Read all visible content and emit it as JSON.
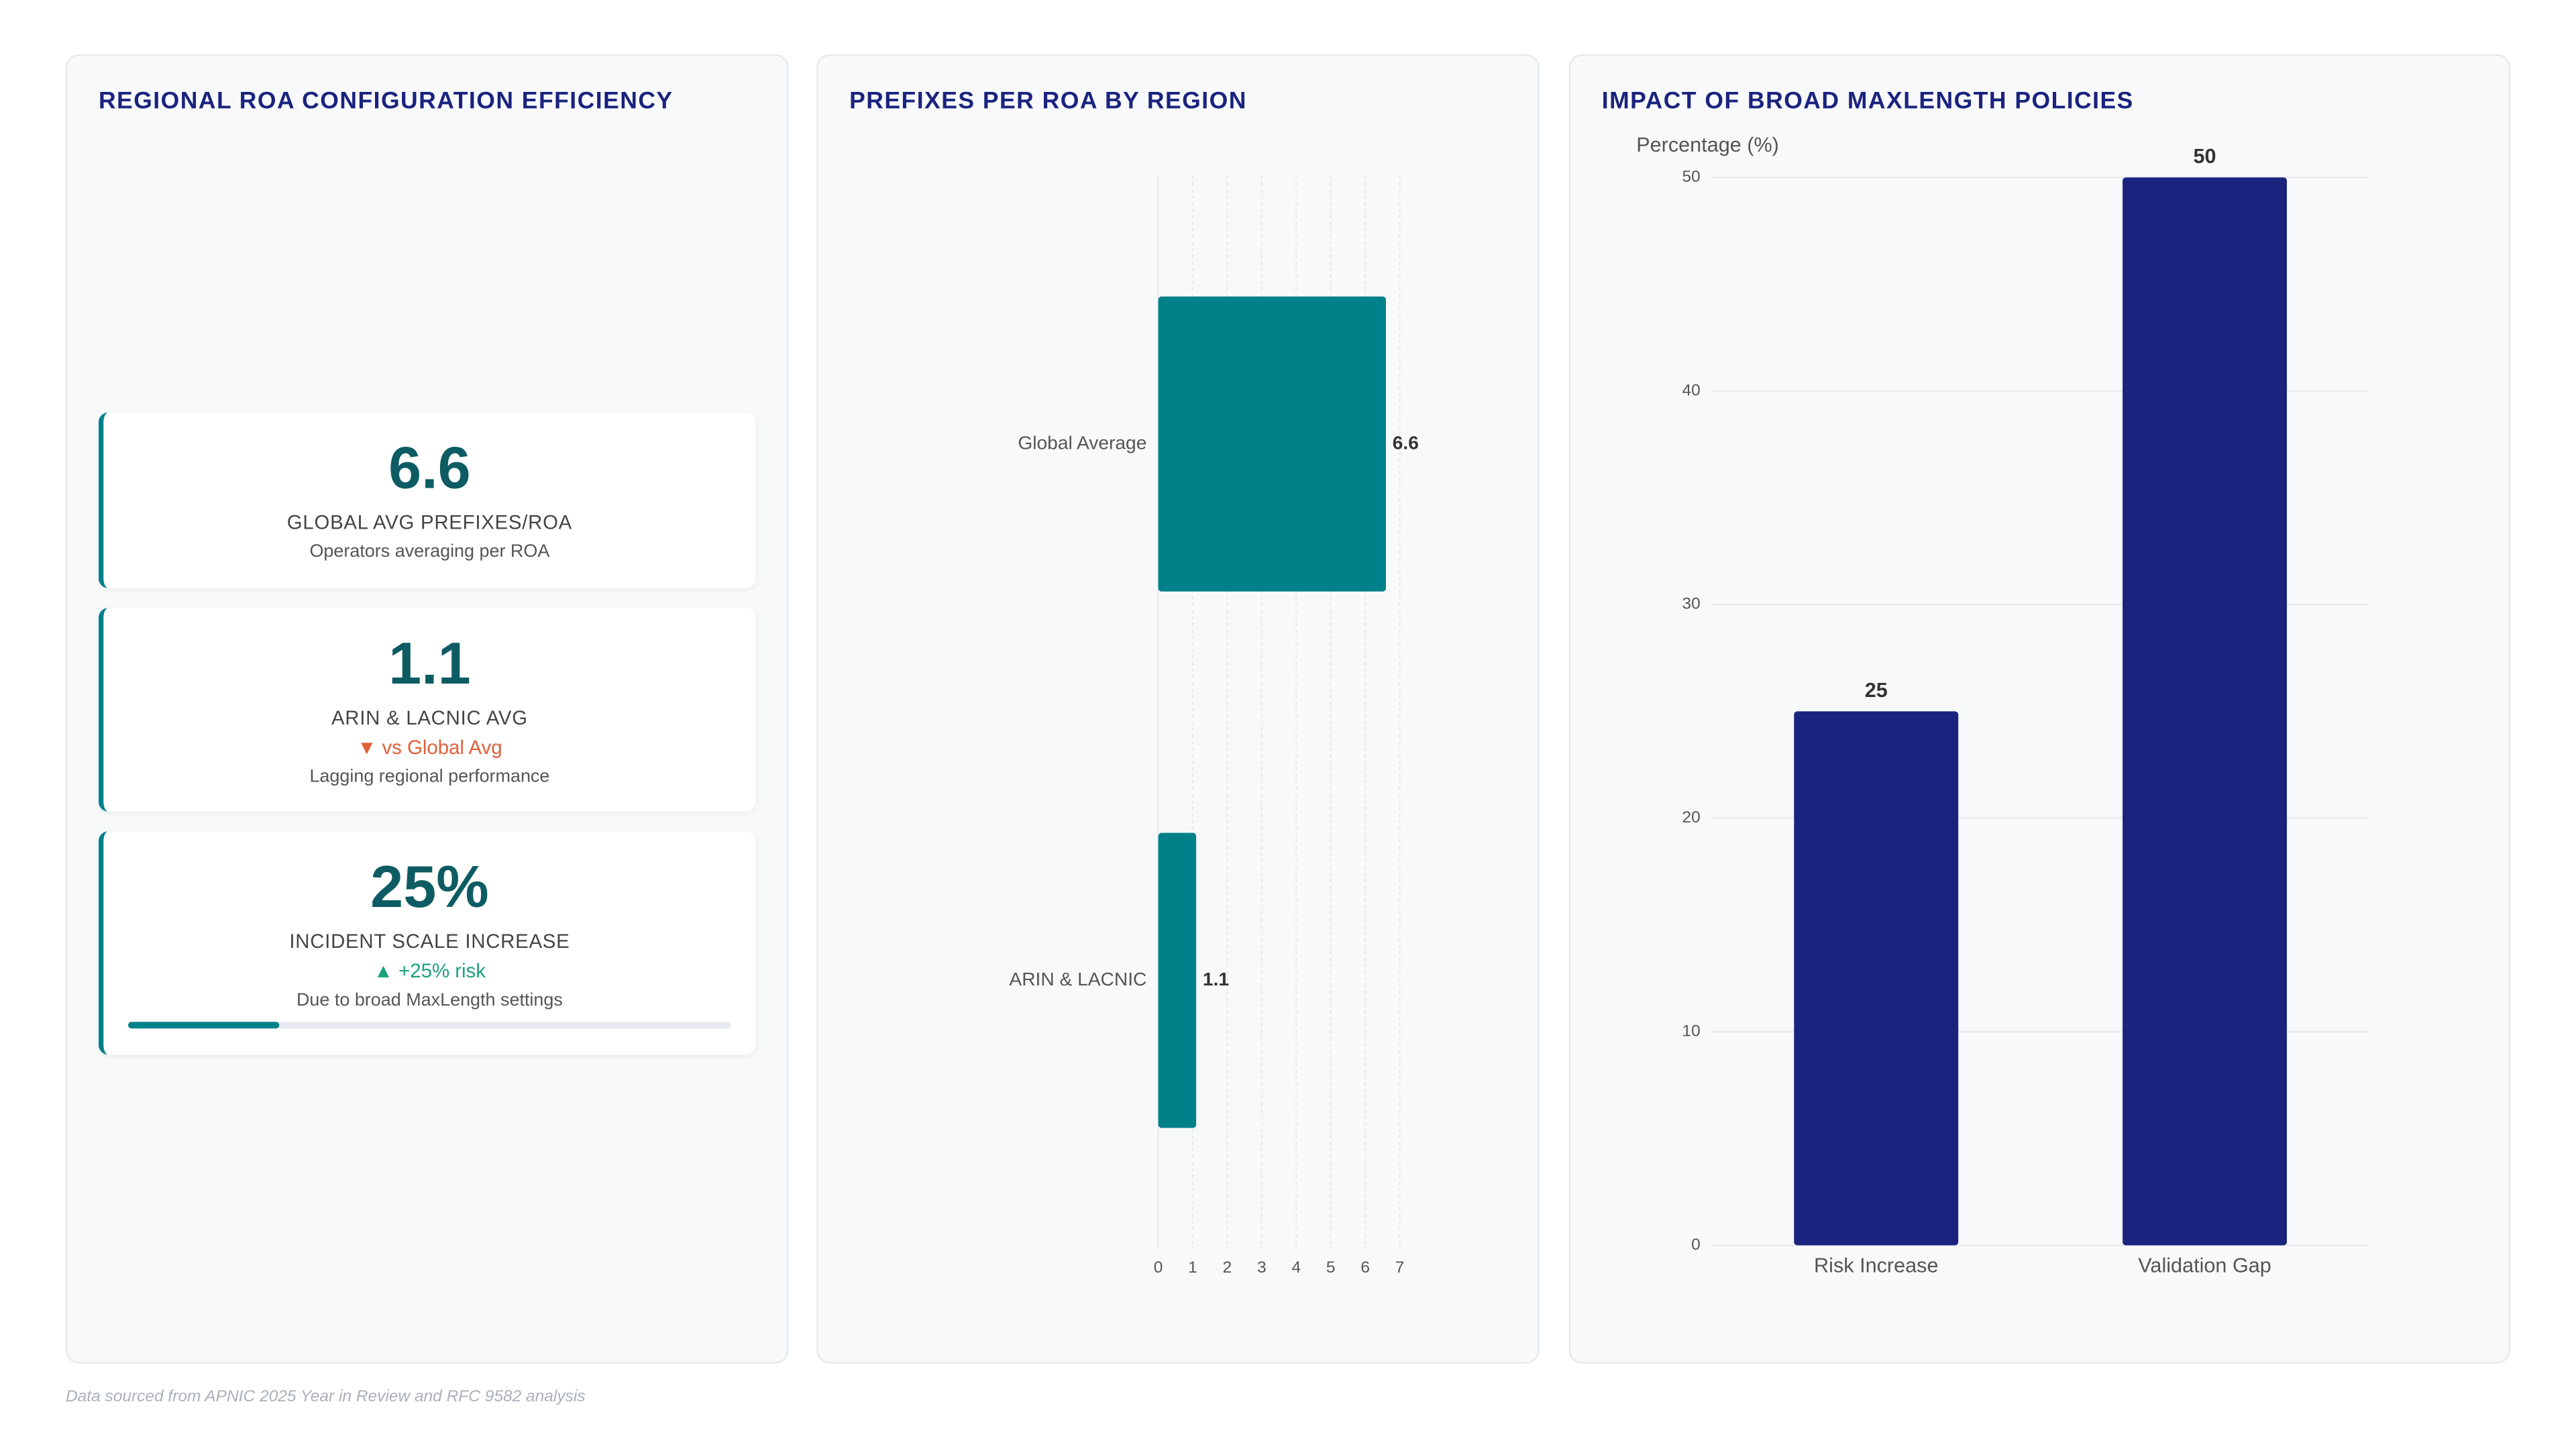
{
  "kpi_panel": {
    "title": "REGIONAL ROA CONFIGURATION EFFICIENCY",
    "cards": [
      {
        "value": "6.6",
        "label": "GLOBAL AVG PREFIXES/ROA",
        "note": "Operators averaging per ROA"
      },
      {
        "value": "1.1",
        "label": "ARIN & LACNIC AVG",
        "change": "▼ vs Global Avg",
        "note": "Lagging regional performance"
      },
      {
        "value": "25%",
        "label": "INCIDENT SCALE INCREASE",
        "change": "▲ +25% risk",
        "note": "Due to broad MaxLength settings",
        "progress": 25
      }
    ]
  },
  "chart_data": [
    {
      "type": "bar",
      "orientation": "horizontal",
      "title": "PREFIXES PER ROA BY REGION",
      "categories": [
        "Global Average",
        "ARIN & LACNIC"
      ],
      "values": [
        6.6,
        1.1
      ],
      "color": "#00818a",
      "xlim": [
        0,
        7
      ],
      "xticks": [
        0,
        1,
        2,
        3,
        4,
        5,
        6,
        7
      ],
      "grid": true
    },
    {
      "type": "bar",
      "orientation": "vertical",
      "title": "IMPACT OF BROAD MAXLENGTH POLICIES",
      "y_label": "Percentage (%)",
      "categories": [
        "Risk Increase",
        "Validation Gap"
      ],
      "values": [
        25,
        50
      ],
      "color": "#1a237e",
      "ylim": [
        0,
        50
      ],
      "yticks": [
        0,
        10,
        20,
        30,
        40,
        50
      ],
      "grid": true
    }
  ],
  "footer": "Data sourced from APNIC 2025 Year in Review and RFC 9582 analysis"
}
